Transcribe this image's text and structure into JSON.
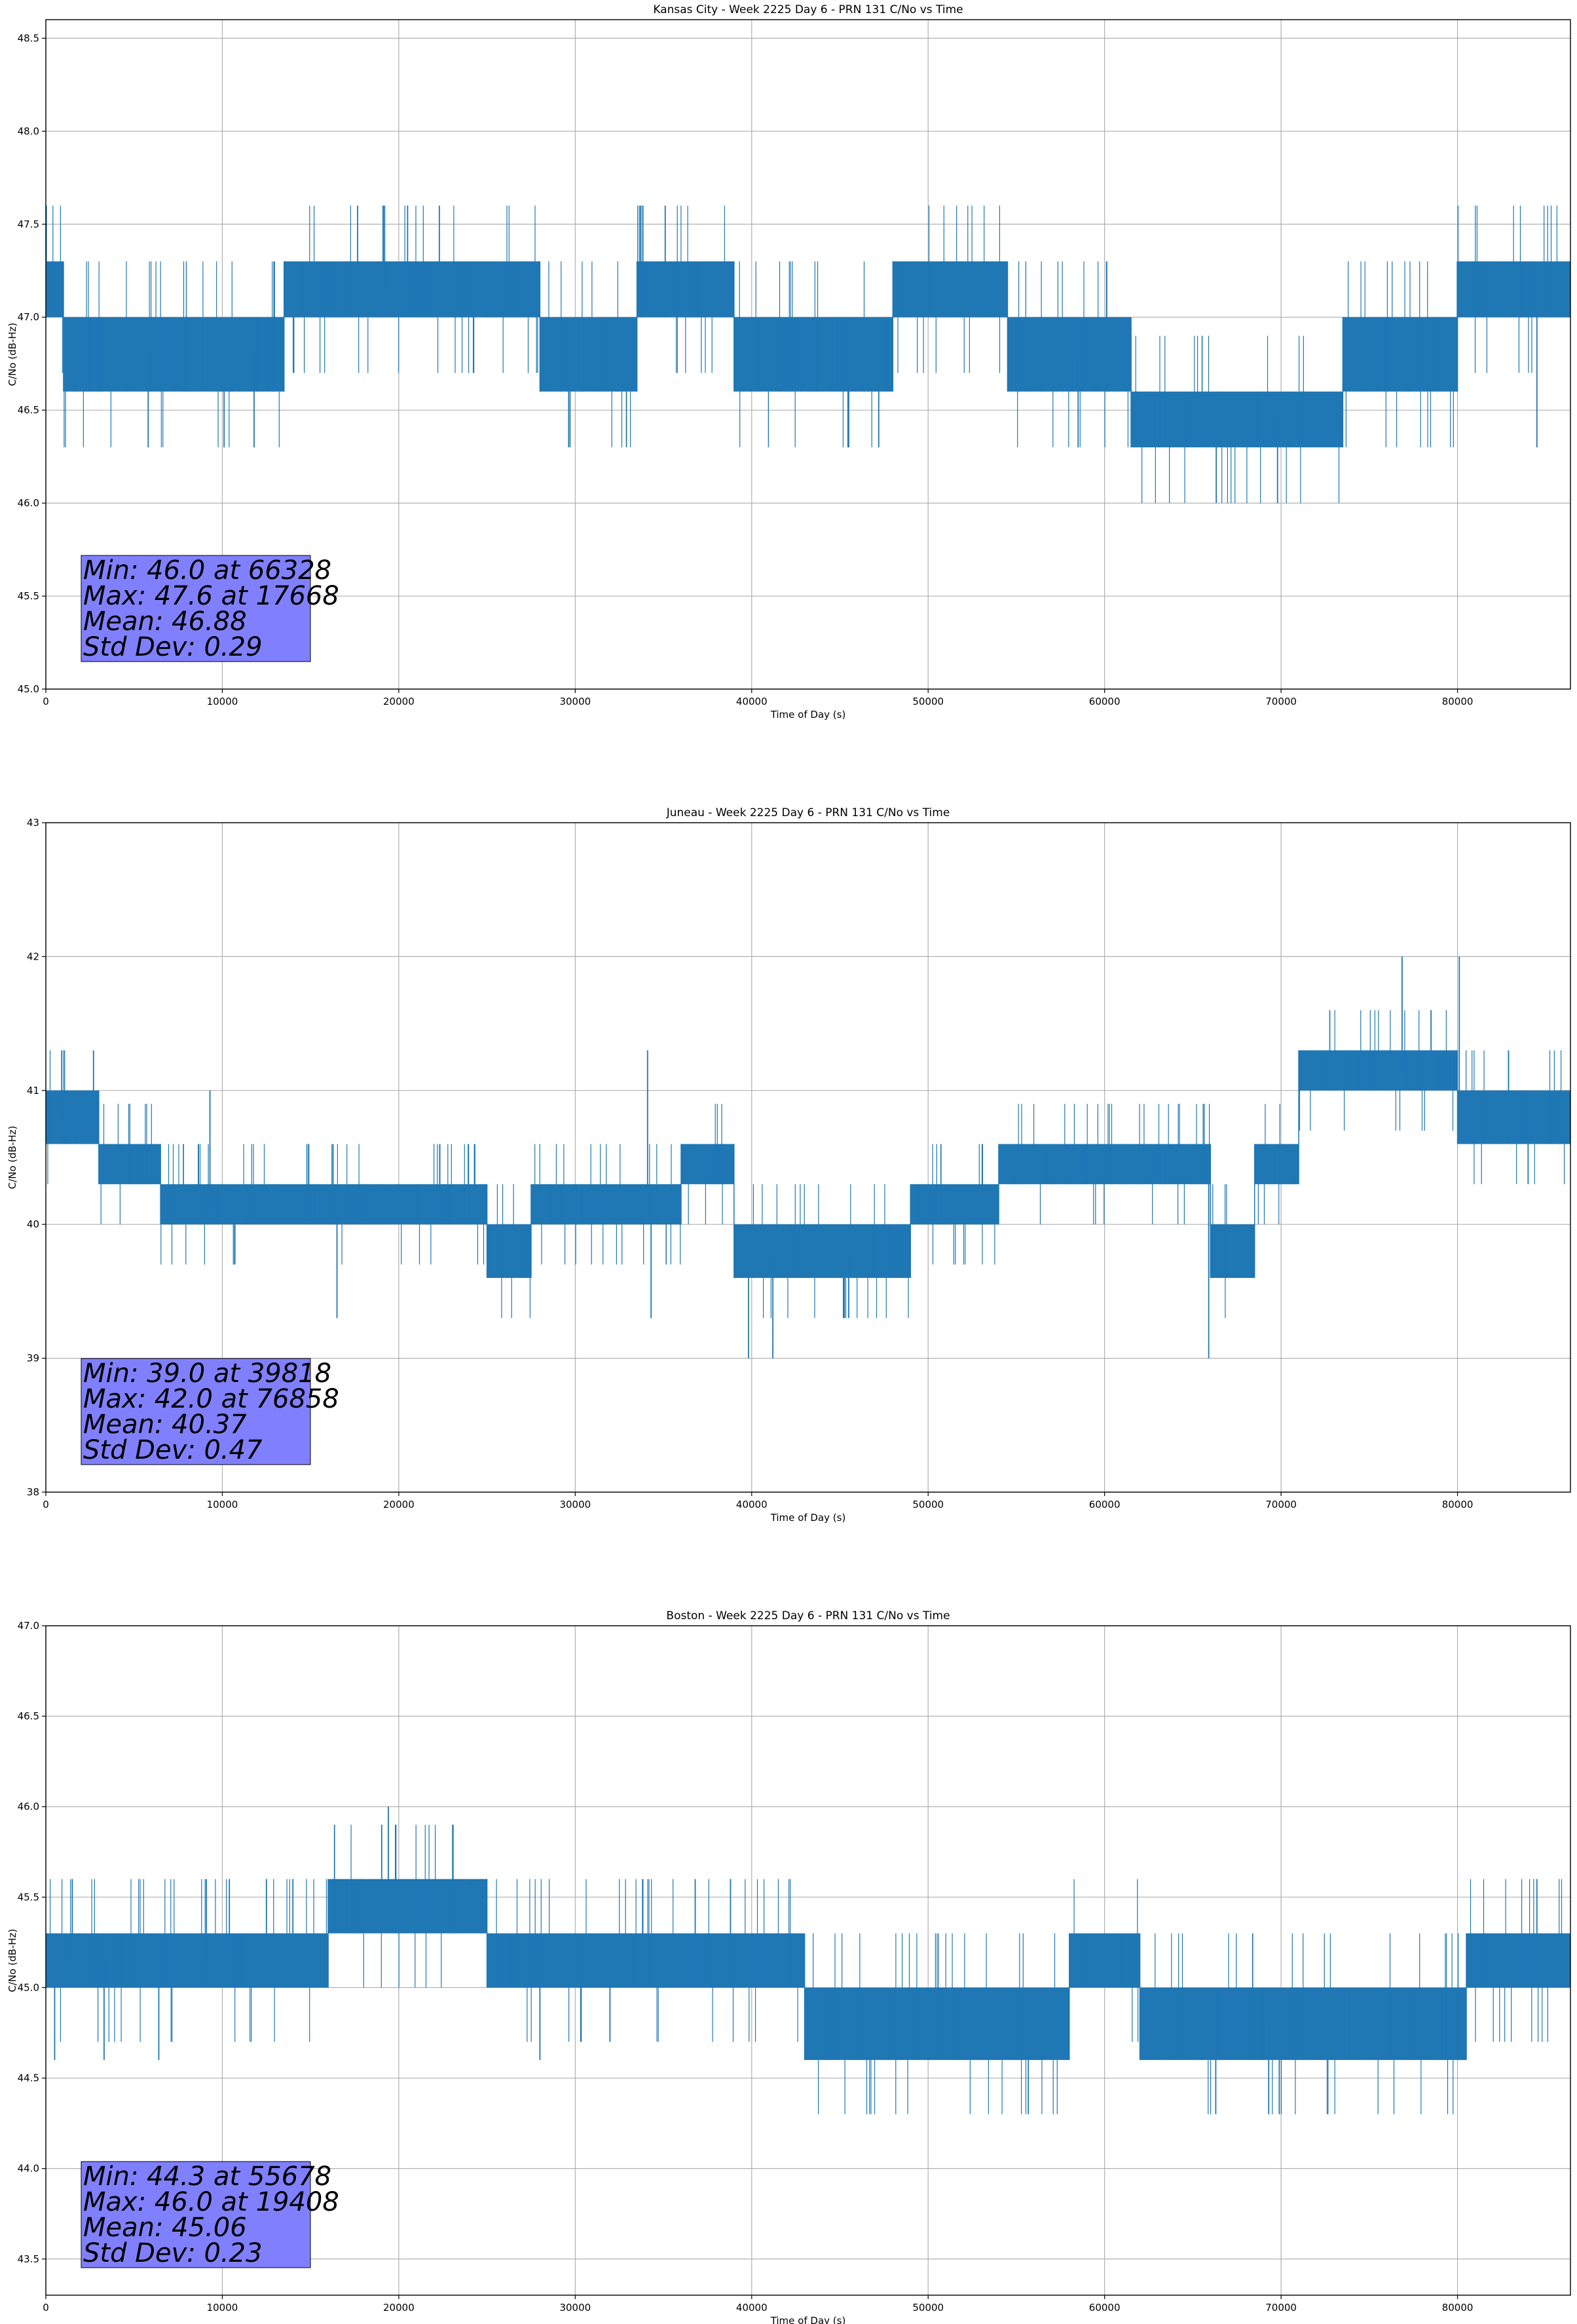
{
  "figure": {
    "background": "#ffffff",
    "series_color": "#1f77b4",
    "grid_color": "#b0b0b0",
    "stats_box_color": "#8080ff"
  },
  "chart_data": [
    {
      "type": "line",
      "title": "Kansas City - Week 2225 Day 6 - PRN 131 C/No vs Time",
      "xlabel": "Time of Day (s)",
      "ylabel": "C/No (dB-Hz)",
      "xlim": [
        0,
        86400
      ],
      "ylim": [
        45.0,
        48.6
      ],
      "xticks": [
        0,
        10000,
        20000,
        30000,
        40000,
        50000,
        60000,
        70000,
        80000
      ],
      "xtick_labels": [
        "0",
        "10000",
        "20000",
        "30000",
        "40000",
        "50000",
        "60000",
        "70000",
        "80000"
      ],
      "yticks": [
        45.0,
        45.5,
        46.0,
        46.5,
        47.0,
        47.5,
        48.0,
        48.5
      ],
      "ytick_labels": [
        "45.0",
        "45.5",
        "46.0",
        "46.5",
        "47.0",
        "47.5",
        "48.0",
        "48.5"
      ],
      "grid": true,
      "quantization": 0.3,
      "segments": [
        {
          "x": [
            0,
            1000
          ],
          "levels": [
            47.0,
            47.3
          ]
        },
        {
          "x": [
            1000,
            13500
          ],
          "levels": [
            46.6,
            47.0
          ]
        },
        {
          "x": [
            13500,
            25000
          ],
          "levels": [
            47.0,
            47.3
          ]
        },
        {
          "x": [
            25000,
            28000
          ],
          "levels": [
            47.0,
            47.3
          ]
        },
        {
          "x": [
            28000,
            33500
          ],
          "levels": [
            46.6,
            47.0
          ]
        },
        {
          "x": [
            33500,
            39000
          ],
          "levels": [
            47.0,
            47.3
          ]
        },
        {
          "x": [
            39000,
            48000
          ],
          "levels": [
            46.6,
            47.0
          ]
        },
        {
          "x": [
            48000,
            54500
          ],
          "levels": [
            47.0,
            47.3
          ]
        },
        {
          "x": [
            54500,
            61500
          ],
          "levels": [
            46.6,
            47.0
          ]
        },
        {
          "x": [
            61500,
            73500
          ],
          "levels": [
            46.3,
            46.6
          ]
        },
        {
          "x": [
            73500,
            80000
          ],
          "levels": [
            46.6,
            47.0
          ]
        },
        {
          "x": [
            80000,
            86400
          ],
          "levels": [
            47.0,
            47.3
          ]
        }
      ],
      "excursions": [
        {
          "x": 5800,
          "y": 46.3
        },
        {
          "x": 10100,
          "y": 46.3
        },
        {
          "x": 11800,
          "y": 46.3
        },
        {
          "x": 17668,
          "y": 47.6
        },
        {
          "x": 19200,
          "y": 47.6
        },
        {
          "x": 20500,
          "y": 47.6
        },
        {
          "x": 22300,
          "y": 47.6
        },
        {
          "x": 33700,
          "y": 47.6
        },
        {
          "x": 35100,
          "y": 47.6
        },
        {
          "x": 45500,
          "y": 46.3
        },
        {
          "x": 47200,
          "y": 46.3
        },
        {
          "x": 58500,
          "y": 46.3
        },
        {
          "x": 66328,
          "y": 46.0
        },
        {
          "x": 69800,
          "y": 46.0
        },
        {
          "x": 84500,
          "y": 46.3
        }
      ],
      "stats": {
        "min_label": "Min: 46.0 at 66328",
        "max_label": "Max: 47.6 at 17668",
        "mean_label": "Mean: 46.88",
        "std_label": "Std Dev: 0.29",
        "min": 46.0,
        "min_at": 66328,
        "max": 47.6,
        "max_at": 17668,
        "mean": 46.88,
        "std": 0.29
      }
    },
    {
      "type": "line",
      "title": "Juneau - Week 2225 Day 6 - PRN 131 C/No vs Time",
      "xlabel": "Time of Day (s)",
      "ylabel": "C/No (dB-Hz)",
      "xlim": [
        0,
        86400
      ],
      "ylim": [
        38,
        43
      ],
      "xticks": [
        0,
        10000,
        20000,
        30000,
        40000,
        50000,
        60000,
        70000,
        80000
      ],
      "xtick_labels": [
        "0",
        "10000",
        "20000",
        "30000",
        "40000",
        "50000",
        "60000",
        "70000",
        "80000"
      ],
      "yticks": [
        38,
        39,
        40,
        41,
        42,
        43
      ],
      "ytick_labels": [
        "38",
        "39",
        "40",
        "41",
        "42",
        "43"
      ],
      "grid": true,
      "quantization": 0.3,
      "segments": [
        {
          "x": [
            0,
            3000
          ],
          "levels": [
            40.6,
            41.0
          ]
        },
        {
          "x": [
            3000,
            6500
          ],
          "levels": [
            40.3,
            40.6
          ]
        },
        {
          "x": [
            6500,
            25000
          ],
          "levels": [
            40.0,
            40.3
          ]
        },
        {
          "x": [
            25000,
            27500
          ],
          "levels": [
            39.6,
            40.0
          ]
        },
        {
          "x": [
            27500,
            36000
          ],
          "levels": [
            40.0,
            40.3
          ]
        },
        {
          "x": [
            36000,
            39000
          ],
          "levels": [
            40.3,
            40.6
          ]
        },
        {
          "x": [
            39000,
            43000
          ],
          "levels": [
            39.6,
            40.0
          ]
        },
        {
          "x": [
            43000,
            49000
          ],
          "levels": [
            39.6,
            40.0
          ]
        },
        {
          "x": [
            49000,
            54000
          ],
          "levels": [
            40.0,
            40.3
          ]
        },
        {
          "x": [
            54000,
            66000
          ],
          "levels": [
            40.3,
            40.6
          ]
        },
        {
          "x": [
            66000,
            68500
          ],
          "levels": [
            39.6,
            40.0
          ]
        },
        {
          "x": [
            68500,
            71000
          ],
          "levels": [
            40.3,
            40.6
          ]
        },
        {
          "x": [
            71000,
            80000
          ],
          "levels": [
            41.0,
            41.3
          ]
        },
        {
          "x": [
            80000,
            86400
          ],
          "levels": [
            40.6,
            41.0
          ]
        }
      ],
      "excursions": [
        {
          "x": 900,
          "y": 41.3
        },
        {
          "x": 2700,
          "y": 41.3
        },
        {
          "x": 9300,
          "y": 41.0
        },
        {
          "x": 16500,
          "y": 39.3
        },
        {
          "x": 34100,
          "y": 41.3
        },
        {
          "x": 34300,
          "y": 39.3
        },
        {
          "x": 39818,
          "y": 39.0
        },
        {
          "x": 41200,
          "y": 39.0
        },
        {
          "x": 45500,
          "y": 39.3
        },
        {
          "x": 65900,
          "y": 39.0
        },
        {
          "x": 76858,
          "y": 42.0
        },
        {
          "x": 80100,
          "y": 42.0
        },
        {
          "x": 78500,
          "y": 41.6
        },
        {
          "x": 84000,
          "y": 40.3
        }
      ],
      "stats": {
        "min_label": "Min: 39.0 at 39818",
        "max_label": "Max: 42.0 at 76858",
        "mean_label": "Mean: 40.37",
        "std_label": "Std Dev: 0.47",
        "min": 39.0,
        "min_at": 39818,
        "max": 42.0,
        "max_at": 76858,
        "mean": 40.37,
        "std": 0.47
      }
    },
    {
      "type": "line",
      "title": "Boston - Week 2225 Day 6 - PRN 131 C/No vs Time",
      "xlabel": "Time of Day (s)",
      "ylabel": "C/No (dB-Hz)",
      "xlim": [
        0,
        86400
      ],
      "ylim": [
        43.3,
        47.0
      ],
      "xticks": [
        0,
        10000,
        20000,
        30000,
        40000,
        50000,
        60000,
        70000,
        80000
      ],
      "xtick_labels": [
        "0",
        "10000",
        "20000",
        "30000",
        "40000",
        "50000",
        "60000",
        "70000",
        "80000"
      ],
      "yticks": [
        43.5,
        44.0,
        44.5,
        45.0,
        45.5,
        46.0,
        46.5,
        47.0
      ],
      "ytick_labels": [
        "43.5",
        "44.0",
        "44.5",
        "45.0",
        "45.5",
        "46.0",
        "46.5",
        "47.0"
      ],
      "grid": true,
      "quantization": 0.3,
      "segments": [
        {
          "x": [
            0,
            14000
          ],
          "levels": [
            45.0,
            45.3
          ]
        },
        {
          "x": [
            14000,
            16000
          ],
          "levels": [
            45.0,
            45.3
          ]
        },
        {
          "x": [
            16000,
            25000
          ],
          "levels": [
            45.3,
            45.6
          ]
        },
        {
          "x": [
            25000,
            43000
          ],
          "levels": [
            45.0,
            45.3
          ]
        },
        {
          "x": [
            43000,
            58000
          ],
          "levels": [
            44.6,
            45.0
          ]
        },
        {
          "x": [
            58000,
            62000
          ],
          "levels": [
            45.0,
            45.3
          ]
        },
        {
          "x": [
            62000,
            80500
          ],
          "levels": [
            44.6,
            45.0
          ]
        },
        {
          "x": [
            80500,
            86400
          ],
          "levels": [
            45.0,
            45.3
          ]
        }
      ],
      "excursions": [
        {
          "x": 500,
          "y": 44.6
        },
        {
          "x": 1500,
          "y": 45.6
        },
        {
          "x": 3300,
          "y": 44.6
        },
        {
          "x": 6400,
          "y": 44.6
        },
        {
          "x": 9100,
          "y": 45.6
        },
        {
          "x": 10400,
          "y": 45.6
        },
        {
          "x": 12500,
          "y": 45.6
        },
        {
          "x": 14000,
          "y": 45.6
        },
        {
          "x": 19408,
          "y": 46.0
        },
        {
          "x": 28000,
          "y": 44.6
        },
        {
          "x": 36800,
          "y": 45.6
        },
        {
          "x": 38800,
          "y": 45.6
        },
        {
          "x": 55678,
          "y": 44.3
        },
        {
          "x": 66300,
          "y": 44.3
        },
        {
          "x": 69300,
          "y": 44.3
        },
        {
          "x": 69900,
          "y": 44.3
        },
        {
          "x": 84500,
          "y": 45.6
        }
      ],
      "stats": {
        "min_label": "Min: 44.3 at 55678",
        "max_label": "Max: 46.0 at 19408",
        "mean_label": "Mean: 45.06",
        "std_label": "Std Dev: 0.23",
        "min": 44.3,
        "min_at": 55678,
        "max": 46.0,
        "max_at": 19408,
        "mean": 45.06,
        "std": 0.23
      }
    }
  ]
}
